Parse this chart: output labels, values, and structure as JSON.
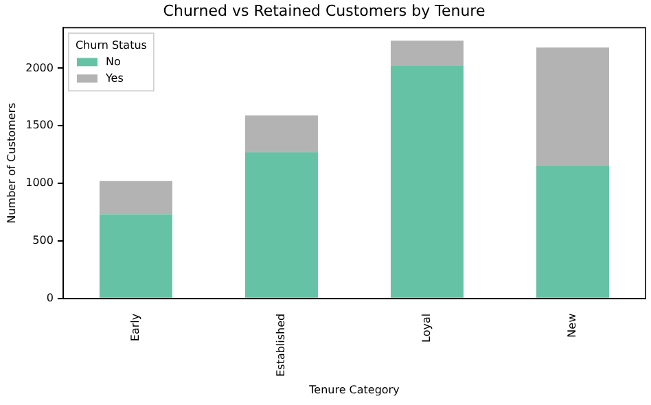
{
  "chart_data": {
    "type": "bar",
    "title": "Churned vs Retained Customers by Tenure",
    "xlabel": "Tenure Category",
    "ylabel": "Number of Customers",
    "legend_title": "Churn Status",
    "categories": [
      "Early",
      "Established",
      "Loyal",
      "New"
    ],
    "series": [
      {
        "name": "No",
        "color": "#66c2a5",
        "values": [
          730,
          1270,
          2020,
          1150
        ]
      },
      {
        "name": "Yes",
        "color": "#b3b3b3",
        "values": [
          290,
          320,
          220,
          1030
        ]
      }
    ],
    "stacked": true,
    "ylim": [
      0,
      2352
    ],
    "yticks": [
      0,
      500,
      1000,
      1500,
      2000
    ],
    "grid": false,
    "legend": "top left"
  }
}
